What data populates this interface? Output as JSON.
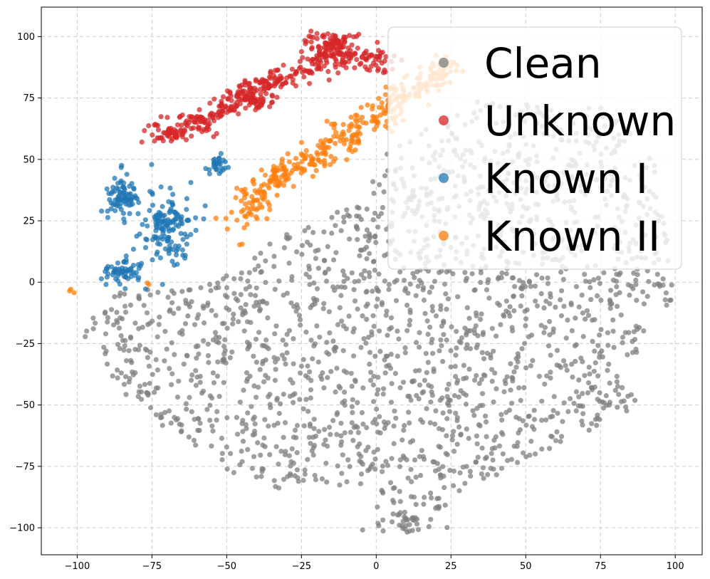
{
  "chart_data": {
    "type": "scatter",
    "title": "",
    "xlabel": "",
    "ylabel": "",
    "xlim": [
      -112,
      109
    ],
    "ylim": [
      -111,
      112
    ],
    "xticks": [
      -100,
      -75,
      -50,
      -25,
      0,
      25,
      50,
      75,
      100
    ],
    "yticks": [
      -100,
      -75,
      -50,
      -25,
      0,
      25,
      50,
      75,
      100
    ],
    "grid": true,
    "legend_position": "top-right",
    "series": [
      {
        "name": "Clean",
        "color": "#7f7f7f",
        "regions": [
          {
            "type": "poly",
            "count": 1900,
            "pts": [
              [
                -99,
                -16
              ],
              [
                -85,
                -3
              ],
              [
                -70,
                -3
              ],
              [
                -55,
                0
              ],
              [
                -45,
                6
              ],
              [
                -40,
                13
              ],
              [
                -28,
                22
              ],
              [
                -18,
                26
              ],
              [
                -10,
                30
              ],
              [
                -2,
                38
              ],
              [
                2,
                52
              ],
              [
                12,
                60
              ],
              [
                20,
                67
              ],
              [
                35,
                74
              ],
              [
                50,
                73
              ],
              [
                65,
                70
              ],
              [
                78,
                72
              ],
              [
                92,
                55
              ],
              [
                97,
                25
              ],
              [
                98,
                0
              ],
              [
                95,
                -10
              ],
              [
                88,
                -28
              ],
              [
                80,
                -45
              ],
              [
                72,
                -62
              ],
              [
                60,
                -70
              ],
              [
                45,
                -75
              ],
              [
                25,
                -90
              ],
              [
                10,
                -98
              ],
              [
                5,
                -98
              ],
              [
                -5,
                -85
              ],
              [
                -20,
                -82
              ],
              [
                -35,
                -85
              ],
              [
                -50,
                -78
              ],
              [
                -60,
                -70
              ],
              [
                -72,
                -60
              ],
              [
                -80,
                -50
              ],
              [
                -90,
                -40
              ],
              [
                -97,
                -30
              ]
            ]
          },
          {
            "type": "blob",
            "count": 30,
            "cx": 10,
            "cy": -98,
            "rx": 10,
            "ry": 4
          },
          {
            "type": "blob",
            "count": 15,
            "cx": 82,
            "cy": -48,
            "rx": 6,
            "ry": 5
          },
          {
            "type": "blob",
            "count": 10,
            "cx": 96,
            "cy": -5,
            "rx": 3,
            "ry": 7
          }
        ]
      },
      {
        "name": "Unknown",
        "color": "#d62728",
        "regions": [
          {
            "type": "band",
            "count": 380,
            "width": 5,
            "pts": [
              [
                -75,
                61
              ],
              [
                -65,
                61
              ],
              [
                -60,
                65
              ],
              [
                -52,
                70
              ],
              [
                -45,
                76
              ],
              [
                -38,
                80
              ],
              [
                -30,
                84
              ],
              [
                -22,
                87
              ],
              [
                -15,
                91
              ],
              [
                -8,
                92
              ],
              [
                0,
                90
              ],
              [
                3,
                88
              ]
            ]
          },
          {
            "type": "blob",
            "count": 90,
            "cx": -15,
            "cy": 97,
            "rx": 7,
            "ry": 5
          },
          {
            "type": "blob",
            "count": 45,
            "cx": -40,
            "cy": 74,
            "rx": 6,
            "ry": 3
          }
        ]
      },
      {
        "name": "Known I",
        "color": "#1f77b4",
        "regions": [
          {
            "type": "blob",
            "count": 140,
            "cx": -70,
            "cy": 22,
            "rx": 8,
            "ry": 13
          },
          {
            "type": "blob",
            "count": 80,
            "cx": -85,
            "cy": 35,
            "rx": 5,
            "ry": 9
          },
          {
            "type": "blob",
            "count": 60,
            "cx": -85,
            "cy": 4,
            "rx": 6,
            "ry": 4
          },
          {
            "type": "blob",
            "count": 30,
            "cx": -53,
            "cy": 48,
            "rx": 3,
            "ry": 5
          }
        ]
      },
      {
        "name": "Known II",
        "color": "#ff7f0e",
        "regions": [
          {
            "type": "band",
            "count": 380,
            "width": 6,
            "pts": [
              [
                -44,
                26
              ],
              [
                -40,
                35
              ],
              [
                -34,
                43
              ],
              [
                -26,
                48
              ],
              [
                -18,
                52
              ],
              [
                -10,
                58
              ],
              [
                -4,
                64
              ],
              [
                3,
                70
              ],
              [
                10,
                77
              ],
              [
                18,
                83
              ],
              [
                26,
                88
              ]
            ]
          },
          {
            "type": "blob",
            "count": 3,
            "cx": -102,
            "cy": -3,
            "rx": 1,
            "ry": 1
          },
          {
            "type": "blob",
            "count": 2,
            "cx": -76,
            "cy": -1,
            "rx": 1,
            "ry": 1
          },
          {
            "type": "blob",
            "count": 2,
            "cx": -46,
            "cy": 15,
            "rx": 1,
            "ry": 1
          }
        ]
      }
    ]
  }
}
